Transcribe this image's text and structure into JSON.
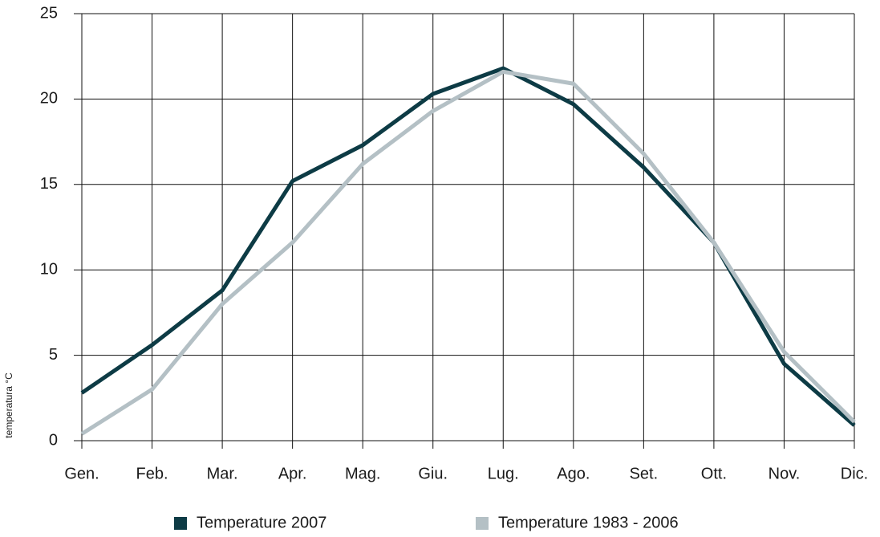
{
  "chart_data": {
    "type": "line",
    "y_label": "temperatura °C",
    "categories": [
      "Gen.",
      "Feb.",
      "Mar.",
      "Apr.",
      "Mag.",
      "Giu.",
      "Lug.",
      "Ago.",
      "Set.",
      "Ott.",
      "Nov.",
      "Dic."
    ],
    "series": [
      {
        "name": "Temperature 2007",
        "color": "#0d3b45",
        "values": [
          2.8,
          5.6,
          8.8,
          15.2,
          17.3,
          20.3,
          21.8,
          19.7,
          16.0,
          11.6,
          4.5,
          0.9
        ]
      },
      {
        "name": "Temperature 1983 - 2006",
        "color": "#b4c0c5",
        "values": [
          0.4,
          3.0,
          8.0,
          11.6,
          16.2,
          19.3,
          21.6,
          20.9,
          16.8,
          11.6,
          5.2,
          1.1
        ]
      }
    ],
    "ylim": [
      0,
      25
    ],
    "yticks": [
      0,
      5,
      10,
      15,
      20,
      25
    ],
    "grid": true,
    "legend": "bottom"
  }
}
